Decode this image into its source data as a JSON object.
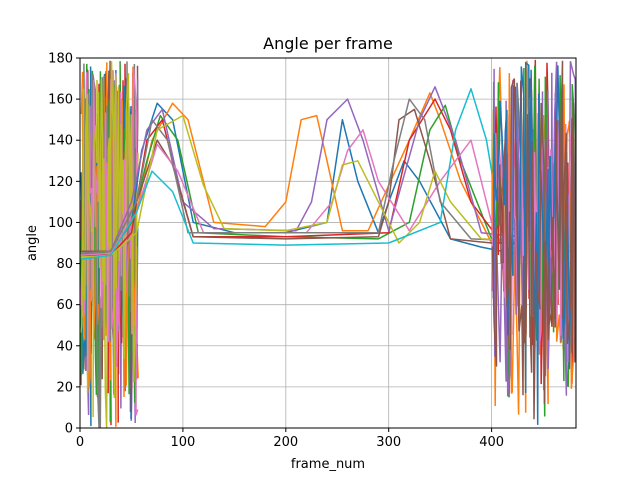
{
  "chart_data": {
    "type": "line",
    "title": "Angle per frame",
    "xlabel": "frame_num",
    "ylabel": "angle",
    "xlim": [
      0,
      482
    ],
    "ylim": [
      0,
      180
    ],
    "xticks": [
      0,
      100,
      200,
      300,
      400
    ],
    "yticks": [
      0,
      20,
      40,
      60,
      80,
      100,
      120,
      140,
      160,
      180
    ],
    "grid": true,
    "legend": "none",
    "series": [
      {
        "color": "#1f77b4",
        "x": [
          0,
          30,
          50,
          60,
          75,
          90,
          110,
          150,
          200,
          240,
          255,
          270,
          290,
          300,
          315,
          330,
          360,
          390,
          420,
          482
        ],
        "y": [
          84,
          85,
          100,
          135,
          158,
          150,
          100,
          95,
          95,
          100,
          150,
          120,
          95,
          110,
          130,
          120,
          92,
          88,
          85,
          86
        ]
      },
      {
        "color": "#ff7f0e",
        "x": [
          0,
          30,
          55,
          70,
          90,
          105,
          130,
          180,
          200,
          215,
          230,
          240,
          255,
          280,
          320,
          340,
          350,
          370,
          400,
          482
        ],
        "y": [
          83,
          84,
          105,
          140,
          158,
          150,
          100,
          98,
          110,
          150,
          152,
          130,
          96,
          96,
          140,
          163,
          150,
          120,
          90,
          88
        ]
      },
      {
        "color": "#2ca02c",
        "x": [
          0,
          30,
          50,
          65,
          78,
          95,
          115,
          200,
          290,
          320,
          340,
          355,
          370,
          400,
          482
        ],
        "y": [
          85,
          85,
          100,
          130,
          152,
          140,
          95,
          93,
          92,
          100,
          145,
          157,
          130,
          92,
          90
        ]
      },
      {
        "color": "#d62728",
        "x": [
          0,
          30,
          50,
          65,
          80,
          95,
          110,
          200,
          300,
          320,
          345,
          360,
          380,
          410,
          482
        ],
        "y": [
          84,
          84,
          95,
          140,
          150,
          120,
          93,
          93,
          95,
          140,
          160,
          145,
          110,
          90,
          88
        ]
      },
      {
        "color": "#9467bd",
        "x": [
          0,
          30,
          50,
          65,
          80,
          100,
          130,
          210,
          225,
          240,
          260,
          275,
          300,
          330,
          345,
          365,
          390,
          482
        ],
        "y": [
          85,
          86,
          110,
          145,
          155,
          110,
          97,
          96,
          110,
          150,
          160,
          140,
          96,
          150,
          166,
          140,
          95,
          90
        ]
      },
      {
        "color": "#8c564b",
        "x": [
          0,
          30,
          55,
          75,
          90,
          110,
          200,
          290,
          300,
          310,
          325,
          340,
          360,
          400,
          482
        ],
        "y": [
          86,
          86,
          110,
          140,
          128,
          93,
          92,
          93,
          110,
          150,
          155,
          130,
          92,
          90,
          92
        ]
      },
      {
        "color": "#e377c2",
        "x": [
          0,
          30,
          55,
          75,
          95,
          120,
          220,
          245,
          260,
          275,
          290,
          320,
          350,
          380,
          400,
          482
        ],
        "y": [
          84,
          85,
          105,
          138,
          125,
          95,
          95,
          110,
          135,
          145,
          120,
          96,
          120,
          140,
          100,
          88
        ]
      },
      {
        "color": "#7f7f7f",
        "x": [
          0,
          30,
          55,
          70,
          85,
          105,
          200,
          290,
          305,
          320,
          335,
          350,
          380,
          482
        ],
        "y": [
          85,
          86,
          110,
          150,
          140,
          95,
          95,
          95,
          130,
          160,
          150,
          110,
          92,
          90
        ]
      },
      {
        "color": "#bcbd22",
        "x": [
          0,
          30,
          55,
          75,
          100,
          120,
          140,
          200,
          240,
          255,
          270,
          290,
          310,
          330,
          345,
          360,
          390,
          482
        ],
        "y": [
          83,
          84,
          95,
          145,
          152,
          118,
          97,
          96,
          100,
          128,
          130,
          110,
          90,
          100,
          125,
          110,
          92,
          90
        ]
      },
      {
        "color": "#17becf",
        "x": [
          0,
          30,
          55,
          70,
          90,
          110,
          200,
          300,
          350,
          365,
          380,
          395,
          410,
          482
        ],
        "y": [
          82,
          84,
          105,
          125,
          115,
          90,
          89,
          90,
          100,
          145,
          165,
          140,
          95,
          86
        ]
      }
    ],
    "noise": {
      "left_colors": [
        "#8c564b",
        "#9467bd",
        "#d62728",
        "#1f77b4",
        "#2ca02c",
        "#ff7f0e",
        "#7f7f7f",
        "#e377c2",
        "#bcbd22"
      ],
      "left_frame_range": [
        0,
        55
      ],
      "right_colors": [
        "#d62728",
        "#ff7f0e",
        "#2ca02c",
        "#9467bd",
        "#e377c2",
        "#1f77b4",
        "#8c564b"
      ],
      "right_frame_range": [
        400,
        482
      ]
    }
  }
}
